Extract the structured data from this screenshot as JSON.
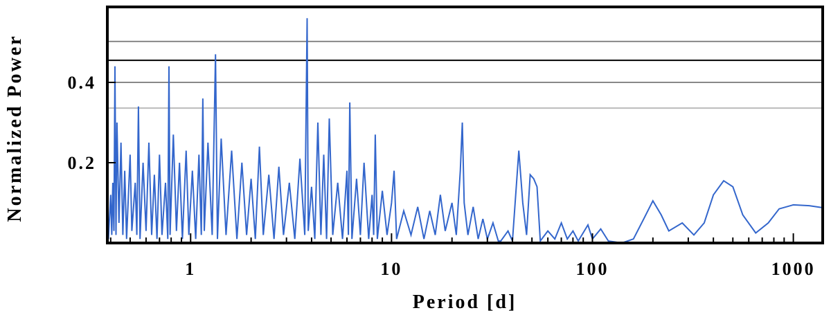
{
  "chart_data": {
    "type": "line",
    "xlabel": "Period [d]",
    "ylabel": "Normalized Power",
    "xscale": "log",
    "xlim": [
      0.385,
      1400
    ],
    "ylim": [
      0,
      0.588
    ],
    "xticks": [
      1,
      10,
      100,
      1000
    ],
    "xminorticks": [
      0.4,
      0.5,
      0.6,
      0.7,
      0.8,
      0.9,
      2,
      3,
      4,
      5,
      6,
      7,
      8,
      9,
      20,
      30,
      40,
      50,
      60,
      70,
      80,
      90,
      200,
      300,
      400,
      500,
      600,
      700,
      800,
      900
    ],
    "yticks": [
      0.2,
      0.4
    ],
    "color": "#3366cc",
    "reference_lines": [
      {
        "value": 0.502,
        "color": "#888888"
      },
      {
        "value": 0.455,
        "color": "#000000"
      },
      {
        "value": 0.4,
        "color": "#888888"
      },
      {
        "value": 0.336,
        "color": "#bbbbbb"
      }
    ],
    "x": [
      0.385,
      0.39,
      0.4,
      0.405,
      0.41,
      0.415,
      0.42,
      0.425,
      0.43,
      0.44,
      0.45,
      0.46,
      0.47,
      0.48,
      0.5,
      0.51,
      0.53,
      0.54,
      0.55,
      0.56,
      0.58,
      0.6,
      0.62,
      0.64,
      0.66,
      0.68,
      0.7,
      0.72,
      0.75,
      0.77,
      0.78,
      0.79,
      0.82,
      0.85,
      0.88,
      0.91,
      0.95,
      0.98,
      1.02,
      1.06,
      1.1,
      1.13,
      1.15,
      1.17,
      1.22,
      1.28,
      1.33,
      1.36,
      1.42,
      1.5,
      1.6,
      1.7,
      1.8,
      1.9,
      2.0,
      2.1,
      2.2,
      2.3,
      2.45,
      2.6,
      2.75,
      2.9,
      3.1,
      3.3,
      3.5,
      3.7,
      3.8,
      3.85,
      4.0,
      4.15,
      4.3,
      4.45,
      4.6,
      4.75,
      4.9,
      5.1,
      5.4,
      5.7,
      6.0,
      6.1,
      6.2,
      6.35,
      6.7,
      7.0,
      7.3,
      7.7,
      8.0,
      8.15,
      8.3,
      8.5,
      9.0,
      9.5,
      10.0,
      10.3,
      10.6,
      11.5,
      12.5,
      13.5,
      14.5,
      15.5,
      16.5,
      17.5,
      18.5,
      20,
      21,
      22,
      22.5,
      23,
      24,
      25.5,
      27,
      28.5,
      30,
      32,
      34,
      35,
      38,
      40,
      43,
      45,
      47,
      49,
      51,
      53,
      55,
      60,
      65,
      70,
      75,
      80,
      85,
      95,
      100,
      110,
      120,
      140,
      160,
      180,
      200,
      220,
      240,
      280,
      320,
      360,
      400,
      450,
      500,
      560,
      650,
      750,
      850,
      1000,
      1200,
      1400
    ],
    "values": [
      0.06,
      0.01,
      0.12,
      0.02,
      0.15,
      0.03,
      0.44,
      0.02,
      0.3,
      0.05,
      0.25,
      0.02,
      0.18,
      0.01,
      0.22,
      0.03,
      0.15,
      0.02,
      0.34,
      0.01,
      0.2,
      0.03,
      0.25,
      0.02,
      0.17,
      0.01,
      0.22,
      0.02,
      0.15,
      0.01,
      0.44,
      0.02,
      0.27,
      0.03,
      0.2,
      0.01,
      0.23,
      0.02,
      0.18,
      0.01,
      0.22,
      0.02,
      0.36,
      0.03,
      0.25,
      0.02,
      0.47,
      0.01,
      0.26,
      0.02,
      0.23,
      0.01,
      0.2,
      0.02,
      0.16,
      0.01,
      0.24,
      0.02,
      0.17,
      0.01,
      0.19,
      0.02,
      0.15,
      0.01,
      0.21,
      0.02,
      0.56,
      0.03,
      0.14,
      0.01,
      0.3,
      0.02,
      0.22,
      0.01,
      0.31,
      0.02,
      0.15,
      0.01,
      0.18,
      0.02,
      0.35,
      0.01,
      0.16,
      0.02,
      0.2,
      0.01,
      0.12,
      0.02,
      0.27,
      0.01,
      0.13,
      0.02,
      0.1,
      0.18,
      0.01,
      0.08,
      0.02,
      0.09,
      0.01,
      0.08,
      0.02,
      0.12,
      0.03,
      0.1,
      0.02,
      0.18,
      0.3,
      0.1,
      0.02,
      0.09,
      0.01,
      0.06,
      0.01,
      0.05,
      0.005,
      0.005,
      0.03,
      0.005,
      0.23,
      0.1,
      0.02,
      0.17,
      0.16,
      0.14,
      0.005,
      0.03,
      0.01,
      0.05,
      0.01,
      0.03,
      0.005,
      0.045,
      0.01,
      0.035,
      0.005,
      0,
      0.01,
      0.06,
      0.105,
      0.07,
      0.03,
      0.05,
      0.02,
      0.05,
      0.12,
      0.155,
      0.14,
      0.07,
      0.025,
      0.05,
      0.085,
      0.095,
      0.093,
      0.088
    ]
  }
}
